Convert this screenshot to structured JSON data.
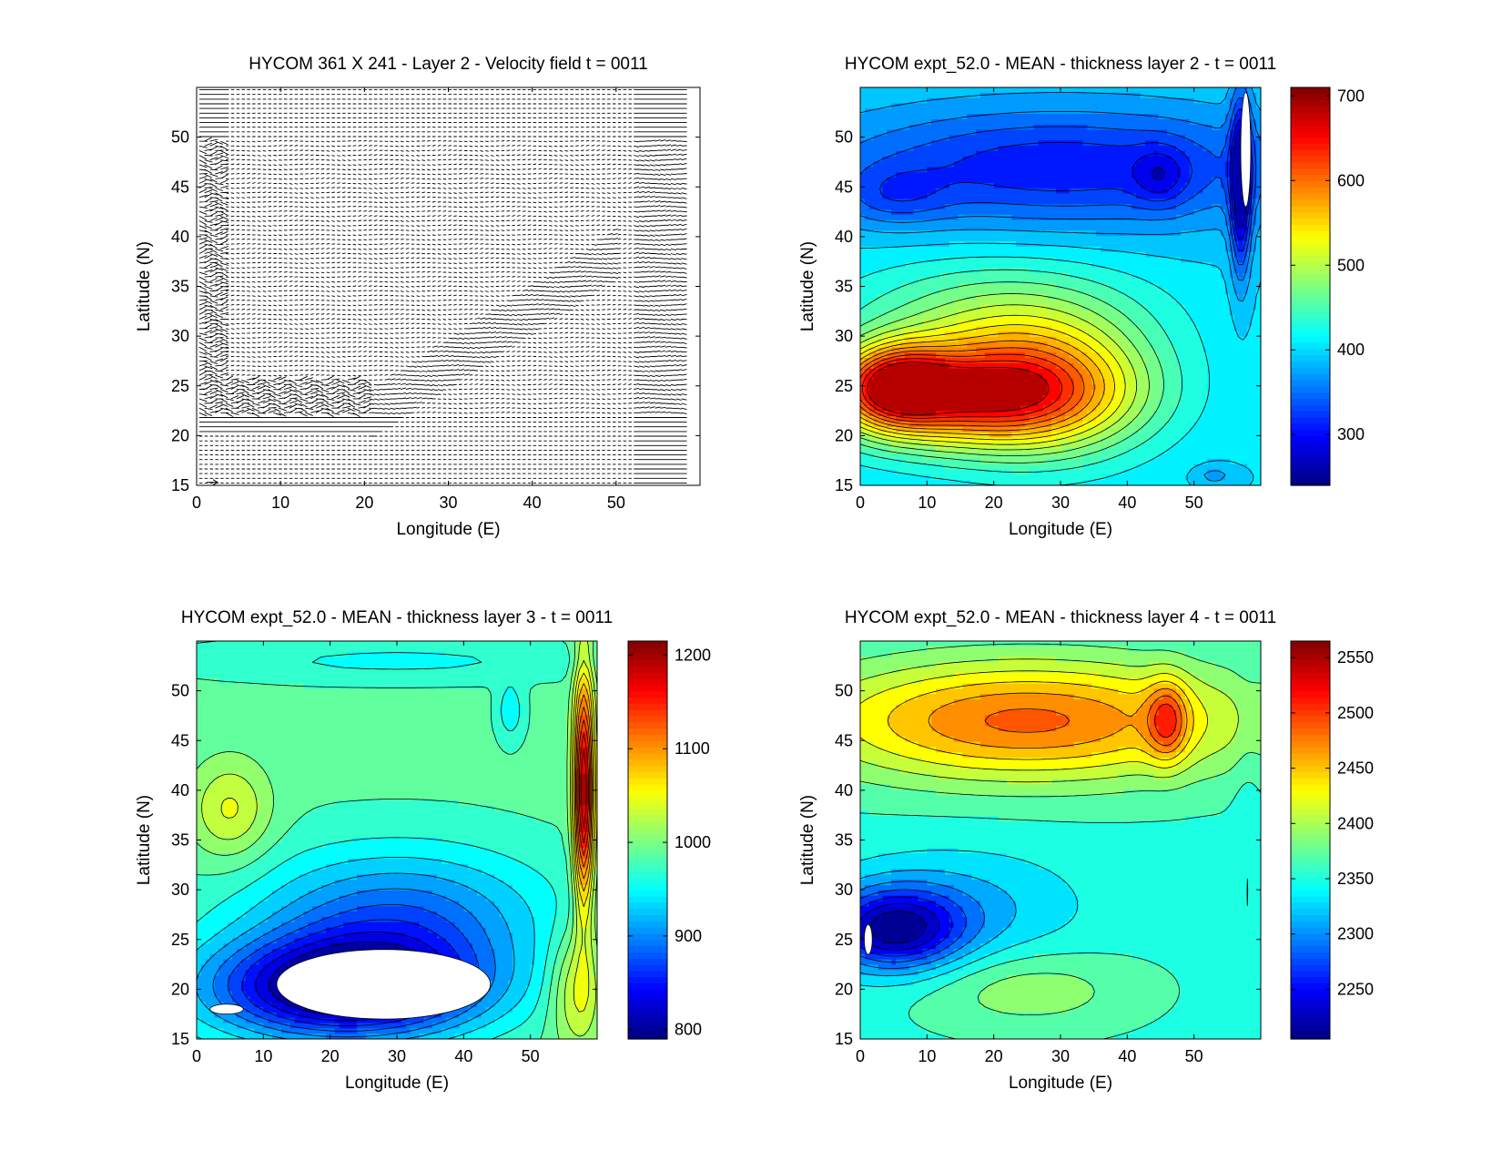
{
  "figure": {
    "background": "#ffffff"
  },
  "chart_data": [
    {
      "id": "p1",
      "type": "quiver",
      "title": "HYCOM 361 X 241 - Layer 2 - Velocity field  t = 0011",
      "xlabel": "Longitude (E)",
      "ylabel": "Latitude (N)",
      "xlim": [
        0,
        60
      ],
      "ylim": [
        15,
        55
      ],
      "xticks": [
        0,
        10,
        20,
        30,
        40,
        50
      ],
      "yticks": [
        15,
        20,
        25,
        30,
        35,
        40,
        45,
        50
      ],
      "scale_arrow": {
        "x": 1.2,
        "y": 15.3,
        "u": 1.0,
        "v": 0.0
      },
      "dense_regions": [
        {
          "name": "western-boundary",
          "lon": [
            0,
            3
          ],
          "lat": [
            20,
            55
          ],
          "density": "high"
        },
        {
          "name": "recirculation-band",
          "lon": [
            0,
            20
          ],
          "lat": [
            20,
            26
          ],
          "density": "high"
        },
        {
          "name": "diagonal-jet",
          "lon": [
            20,
            50
          ],
          "lat": [
            22,
            40
          ],
          "density": "medium"
        },
        {
          "name": "eastern-boundary",
          "lon": [
            52,
            58
          ],
          "lat": [
            15,
            55
          ],
          "density": "medium"
        }
      ],
      "colors": {
        "arrows": "#000000"
      }
    },
    {
      "id": "p2",
      "type": "contour",
      "title": "HYCOM expt_52.0 - MEAN - thickness layer 2 - t = 0011",
      "xlabel": "Longitude (E)",
      "ylabel": "Latitude (N)",
      "xlim": [
        0,
        60
      ],
      "ylim": [
        15,
        55
      ],
      "xticks": [
        0,
        10,
        20,
        30,
        40,
        50
      ],
      "yticks": [
        15,
        20,
        25,
        30,
        35,
        40,
        45,
        50
      ],
      "colorbar": {
        "min": 240,
        "max": 710,
        "ticks": [
          300,
          400,
          500,
          600,
          700
        ]
      },
      "levels": [
        280,
        300,
        320,
        340,
        360,
        380,
        400,
        420,
        440,
        460,
        480,
        500,
        520,
        540,
        560,
        580,
        600,
        620,
        640,
        660
      ],
      "masked_regions": [
        {
          "lon": [
            57,
            58.5
          ],
          "lat": [
            43,
            54.5
          ]
        }
      ],
      "field": {
        "base": 400,
        "minimum": 245,
        "maximum": 705,
        "features": [
          {
            "type": "gauss",
            "lon": 5,
            "lat": 25,
            "rx": 8,
            "ry": 4,
            "amp": 160
          },
          {
            "type": "gauss",
            "lon": 15,
            "lat": 24,
            "rx": 20,
            "ry": 5,
            "amp": 200
          },
          {
            "type": "gauss",
            "lon": 28,
            "lat": 25,
            "rx": 16,
            "ry": 7,
            "amp": 120
          },
          {
            "type": "gauss",
            "lon": 20,
            "lat": 32,
            "rx": 22,
            "ry": 6,
            "amp": 70
          },
          {
            "type": "gauss",
            "lon": 30,
            "lat": 47,
            "rx": 35,
            "ry": 6,
            "amp": -95
          },
          {
            "type": "gauss",
            "lon": 5,
            "lat": 44,
            "rx": 8,
            "ry": 3,
            "amp": -40
          },
          {
            "type": "gauss",
            "lon": 45,
            "lat": 46,
            "rx": 4,
            "ry": 3,
            "amp": -45
          },
          {
            "type": "gauss",
            "lon": 57,
            "lat": 45,
            "rx": 1.5,
            "ry": 9,
            "amp": -130
          },
          {
            "type": "gauss",
            "lon": 53,
            "lat": 16,
            "rx": 3,
            "ry": 1,
            "amp": -30
          }
        ]
      },
      "colors": {
        "colormap": "jet",
        "contour_lines": "#000000"
      }
    },
    {
      "id": "p3",
      "type": "contour",
      "title": "HYCOM expt_52.0 - MEAN - thickness layer 3 - t = 0011",
      "xlabel": "Longitude (E)",
      "ylabel": "Latitude (N)",
      "xlim": [
        0,
        60
      ],
      "ylim": [
        15,
        55
      ],
      "xticks": [
        0,
        10,
        20,
        30,
        40,
        50
      ],
      "yticks": [
        15,
        20,
        25,
        30,
        35,
        40,
        45,
        50
      ],
      "colorbar": {
        "min": 790,
        "max": 1215,
        "ticks": [
          800,
          900,
          1000,
          1100,
          1200
        ]
      },
      "levels": [
        820,
        840,
        860,
        880,
        900,
        920,
        940,
        960,
        980,
        1000,
        1020,
        1040,
        1060,
        1080,
        1100,
        1120,
        1140,
        1160,
        1180
      ],
      "masked_regions": [
        {
          "lon": [
            12,
            44
          ],
          "lat": [
            17,
            24
          ]
        },
        {
          "lon": [
            2,
            7
          ],
          "lat": [
            17.5,
            18.5
          ]
        }
      ],
      "field": {
        "base": 985,
        "minimum": 795,
        "maximum": 1210,
        "features": [
          {
            "type": "gauss",
            "lon": 22,
            "lat": 20,
            "rx": 20,
            "ry": 5,
            "amp": -200
          },
          {
            "type": "gauss",
            "lon": 30,
            "lat": 27,
            "rx": 22,
            "ry": 7,
            "amp": -100
          },
          {
            "type": "gauss",
            "lon": 58,
            "lat": 40,
            "rx": 1.5,
            "ry": 12,
            "amp": 220
          },
          {
            "type": "gauss",
            "lon": 57,
            "lat": 20,
            "rx": 4,
            "ry": 6,
            "amp": 70
          },
          {
            "type": "gauss",
            "lon": 5,
            "lat": 38,
            "rx": 6,
            "ry": 5,
            "amp": 60
          },
          {
            "type": "gauss",
            "lon": 30,
            "lat": 53,
            "rx": 30,
            "ry": 2,
            "amp": -30
          },
          {
            "type": "gauss",
            "lon": 47,
            "lat": 48,
            "rx": 2,
            "ry": 3,
            "amp": -40
          }
        ]
      },
      "colors": {
        "colormap": "jet",
        "contour_lines": "#000000"
      }
    },
    {
      "id": "p4",
      "type": "contour",
      "title": "HYCOM expt_52.0 - MEAN - thickness layer 4 - t = 0011",
      "xlabel": "Longitude (E)",
      "ylabel": "Latitude (N)",
      "xlim": [
        0,
        60
      ],
      "ylim": [
        15,
        55
      ],
      "xticks": [
        0,
        10,
        20,
        30,
        40,
        50
      ],
      "yticks": [
        15,
        20,
        25,
        30,
        35,
        40,
        45,
        50
      ],
      "colorbar": {
        "min": 2205,
        "max": 2565,
        "ticks": [
          2250,
          2300,
          2350,
          2400,
          2450,
          2500,
          2550
        ]
      },
      "levels": [
        2220,
        2240,
        2260,
        2280,
        2300,
        2320,
        2340,
        2360,
        2380,
        2400,
        2420,
        2440,
        2460,
        2480,
        2500,
        2520,
        2540
      ],
      "masked_regions": [
        {
          "lon": [
            0.6,
            1.8
          ],
          "lat": [
            23.5,
            26.5
          ]
        }
      ],
      "field": {
        "base": 2355,
        "minimum": 2210,
        "maximum": 2560,
        "features": [
          {
            "type": "gauss",
            "lon": 25,
            "lat": 47,
            "rx": 32,
            "ry": 6,
            "amp": 130
          },
          {
            "type": "gauss",
            "lon": 46,
            "lat": 47,
            "rx": 3,
            "ry": 4,
            "amp": 80
          },
          {
            "type": "gauss",
            "lon": 5,
            "lat": 26,
            "rx": 10,
            "ry": 4,
            "amp": -130
          },
          {
            "type": "gauss",
            "lon": 15,
            "lat": 28,
            "rx": 18,
            "ry": 6,
            "amp": -40
          },
          {
            "type": "gauss",
            "lon": 25,
            "lat": 20,
            "rx": 16,
            "ry": 4,
            "amp": 40
          },
          {
            "type": "gauss",
            "lon": 58,
            "lat": 30,
            "rx": 2,
            "ry": 18,
            "amp": -15
          }
        ]
      },
      "colors": {
        "colormap": "jet",
        "contour_lines": "#000000"
      }
    }
  ]
}
